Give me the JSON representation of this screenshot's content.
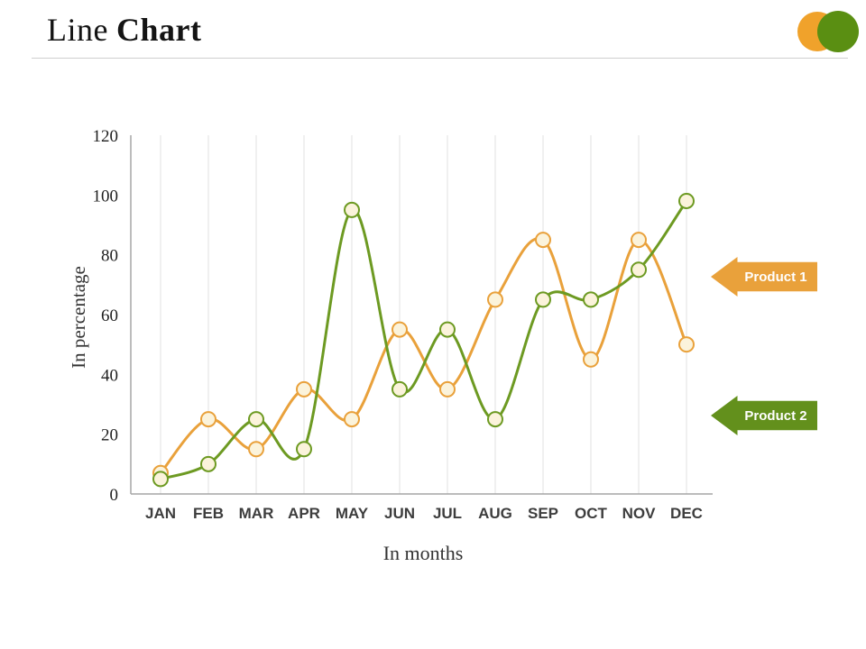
{
  "slide": {
    "title_regular": "Line",
    "title_bold": "Chart"
  },
  "logo": {
    "orange": "#F0A22B",
    "green": "#5A8F12"
  },
  "legend": {
    "product1": {
      "label": "Product 1",
      "color": "#E9A13B"
    },
    "product2": {
      "label": "Product 2",
      "color": "#63901C"
    }
  },
  "chart_data": {
    "type": "line",
    "title": "Line Chart",
    "categories": [
      "JAN",
      "FEB",
      "MAR",
      "APR",
      "MAY",
      "JUN",
      "JUL",
      "AUG",
      "SEP",
      "OCT",
      "NOV",
      "DEC"
    ],
    "series": [
      {
        "name": "Product 1",
        "color": "#E9A13B",
        "values": [
          7,
          25,
          15,
          35,
          25,
          55,
          35,
          65,
          85,
          45,
          85,
          50
        ]
      },
      {
        "name": "Product 2",
        "color": "#6D9A22",
        "values": [
          5,
          10,
          25,
          15,
          95,
          35,
          55,
          25,
          65,
          65,
          75,
          98
        ]
      }
    ],
    "xlabel": "In months",
    "ylabel": "In percentage",
    "ylim": [
      0,
      120
    ],
    "ytick_step": 20,
    "grid": "vertical-only",
    "marker_fill": "#FBF3DB",
    "legend_position": "right"
  }
}
